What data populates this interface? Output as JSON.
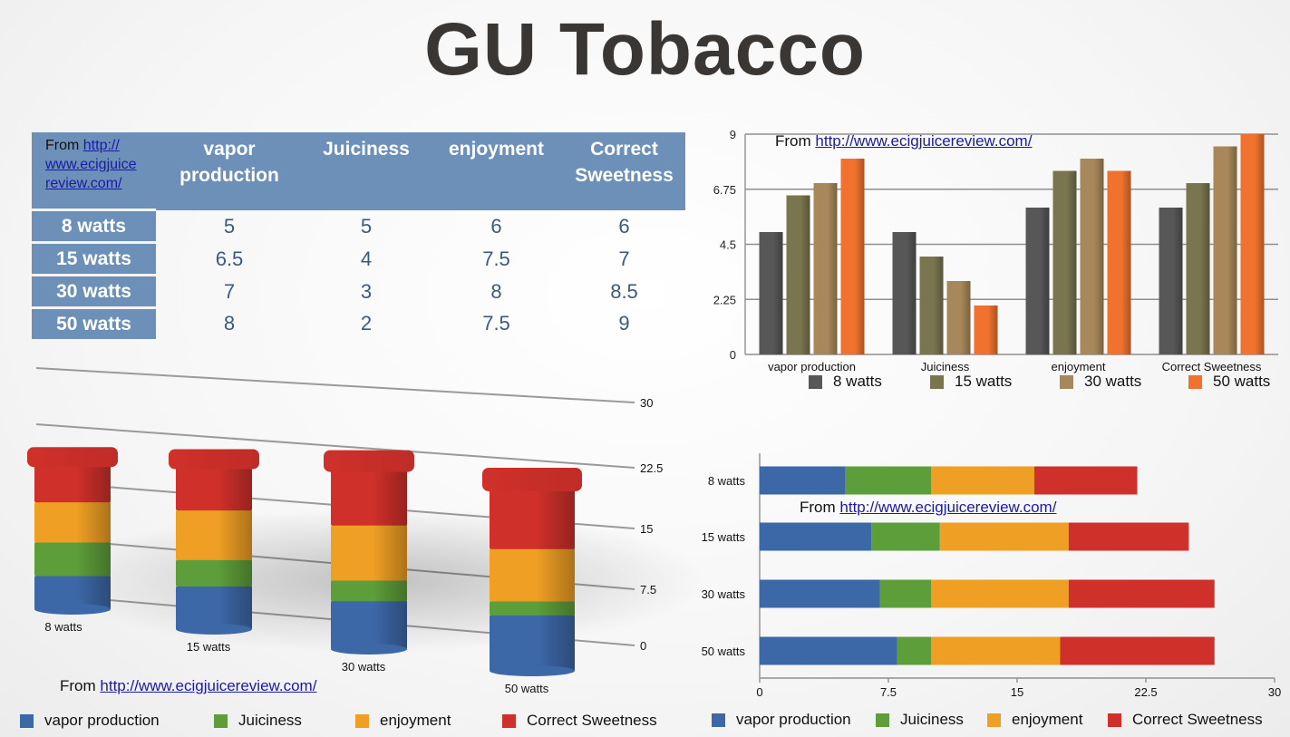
{
  "title": "GU Tobacco",
  "source": {
    "prefix": "From ",
    "url": "http://www.ecigjuicereview.com/"
  },
  "table": {
    "corner_prefix": "From ",
    "corner_link_lines": [
      "http://",
      "www.ecigjuice",
      "review.com/"
    ],
    "columns": [
      [
        "vapor",
        "production"
      ],
      [
        "Juiciness"
      ],
      [
        "enjoyment"
      ],
      [
        "Correct",
        "Sweetness"
      ]
    ],
    "rows": [
      {
        "label": "8 watts",
        "values": [
          "5",
          "5",
          "6",
          "6"
        ]
      },
      {
        "label": "15 watts",
        "values": [
          "6.5",
          "4",
          "7.5",
          "7"
        ]
      },
      {
        "label": "30 watts",
        "values": [
          "7",
          "3",
          "8",
          "8.5"
        ]
      },
      {
        "label": "50 watts",
        "values": [
          "8",
          "2",
          "7.5",
          "9"
        ]
      }
    ]
  },
  "colors": {
    "vapor": "#3d68a8",
    "juiciness": "#5e9e3a",
    "enjoyment": "#ef9f24",
    "sweetness": "#d0302a",
    "w8": "#575757",
    "w15": "#79754f",
    "w30": "#a8885a",
    "w50": "#f0722e"
  },
  "chart_data": [
    {
      "type": "bar",
      "categories": [
        "vapor production",
        "Juiciness",
        "enjoyment",
        "Correct Sweetness"
      ],
      "series": [
        {
          "name": "8 watts",
          "values": [
            5,
            5,
            6,
            6
          ]
        },
        {
          "name": "15 watts",
          "values": [
            6.5,
            4,
            7.5,
            7
          ]
        },
        {
          "name": "30 watts",
          "values": [
            7,
            3,
            8,
            8.5
          ]
        },
        {
          "name": "50 watts",
          "values": [
            8,
            2,
            7.5,
            9
          ]
        }
      ],
      "yticks": [
        "0",
        "2.25",
        "4.5",
        "6.75",
        "9"
      ],
      "ylim": [
        0,
        9
      ],
      "grid": true,
      "legend": "bottom"
    },
    {
      "type": "bar",
      "orientation": "stacked-3d-column",
      "categories": [
        "8 watts",
        "15 watts",
        "30 watts",
        "50 watts"
      ],
      "series": [
        {
          "name": "vapor production",
          "values": [
            5,
            6.5,
            7,
            8
          ]
        },
        {
          "name": "Juiciness",
          "values": [
            5,
            4,
            3,
            2
          ]
        },
        {
          "name": "enjoyment",
          "values": [
            6,
            7.5,
            8,
            7.5
          ]
        },
        {
          "name": "Correct Sweetness",
          "values": [
            6,
            7,
            8.5,
            9
          ]
        }
      ],
      "yticks": [
        "0",
        "7.5",
        "15",
        "22.5",
        "30"
      ],
      "ylim": [
        0,
        30
      ],
      "grid": true,
      "legend": "bottom"
    },
    {
      "type": "bar",
      "orientation": "stacked-horizontal",
      "categories": [
        "8 watts",
        "15 watts",
        "30 watts",
        "50 watts"
      ],
      "series": [
        {
          "name": "vapor production",
          "values": [
            5,
            6.5,
            7,
            8
          ]
        },
        {
          "name": "Juiciness",
          "values": [
            5,
            4,
            3,
            2
          ]
        },
        {
          "name": "enjoyment",
          "values": [
            6,
            7.5,
            8,
            7.5
          ]
        },
        {
          "name": "Correct Sweetness",
          "values": [
            6,
            7,
            8.5,
            9
          ]
        }
      ],
      "xticks": [
        "0",
        "7.5",
        "15",
        "22.5",
        "30"
      ],
      "xlim": [
        0,
        30
      ],
      "grid": false,
      "legend": "bottom"
    }
  ]
}
